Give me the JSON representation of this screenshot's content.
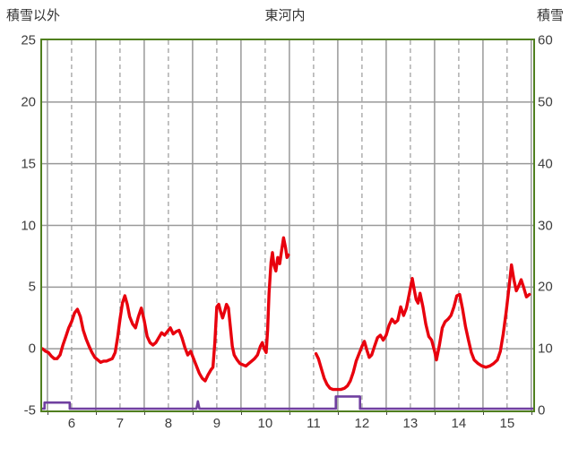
{
  "colors": {
    "background": "#ffffff",
    "frame": "#507f1f",
    "grid": "#999999",
    "text": "#3d3d3d",
    "temperature_line": "#e8000d",
    "snow_line": "#7040a0"
  },
  "chart_data": {
    "type": "line",
    "title": "東河内",
    "legend_position": "none",
    "grid": true,
    "x_axis": {
      "labels": [
        "6",
        "7",
        "8",
        "9",
        "10",
        "11",
        "12",
        "13",
        "14",
        "15"
      ],
      "label_positions": [
        6,
        7,
        8,
        9,
        10,
        11,
        12,
        13,
        14,
        15
      ],
      "range": [
        5.39,
        15.54
      ],
      "solid_gridlines": [
        5.5,
        6.5,
        7.5,
        8.5,
        9.5,
        10.5,
        11.5,
        12.5,
        13.5,
        14.5,
        15.5
      ],
      "dashed_gridlines": [
        6,
        7,
        8,
        9,
        10,
        11,
        12,
        13,
        14,
        15
      ]
    },
    "left_axis": {
      "title": "積雪以外",
      "range": [
        -5,
        25
      ],
      "ticks": [
        25,
        20,
        15,
        10,
        5,
        0,
        -5
      ]
    },
    "right_axis": {
      "title": "積雪",
      "range": [
        0,
        60
      ],
      "ticks": [
        60,
        50,
        40,
        30,
        20,
        10,
        0
      ]
    },
    "series": [
      {
        "name": "積雪以外",
        "axis": "left",
        "color": "#e8000d",
        "width": 3.4,
        "segments": [
          [
            [
              5.4,
              0.0
            ],
            [
              5.46,
              -0.2
            ],
            [
              5.52,
              -0.3
            ],
            [
              5.58,
              -0.6
            ],
            [
              5.64,
              -0.8
            ],
            [
              5.7,
              -0.8
            ],
            [
              5.76,
              -0.5
            ],
            [
              5.82,
              0.3
            ],
            [
              5.88,
              1.0
            ],
            [
              5.94,
              1.7
            ],
            [
              6.0,
              2.2
            ],
            [
              6.06,
              2.9
            ],
            [
              6.12,
              3.2
            ],
            [
              6.18,
              2.6
            ],
            [
              6.24,
              1.5
            ],
            [
              6.3,
              0.8
            ],
            [
              6.36,
              0.2
            ],
            [
              6.42,
              -0.3
            ],
            [
              6.48,
              -0.7
            ],
            [
              6.54,
              -0.9
            ],
            [
              6.6,
              -1.1
            ],
            [
              6.66,
              -1.0
            ],
            [
              6.72,
              -1.0
            ],
            [
              6.78,
              -0.9
            ],
            [
              6.84,
              -0.8
            ],
            [
              6.9,
              -0.3
            ],
            [
              6.95,
              0.9
            ],
            [
              7.0,
              2.4
            ],
            [
              7.05,
              3.7
            ],
            [
              7.1,
              4.3
            ],
            [
              7.15,
              3.6
            ],
            [
              7.2,
              2.6
            ],
            [
              7.26,
              2.0
            ],
            [
              7.32,
              1.7
            ],
            [
              7.38,
              2.6
            ],
            [
              7.44,
              3.3
            ],
            [
              7.5,
              2.3
            ],
            [
              7.56,
              1.0
            ],
            [
              7.62,
              0.5
            ],
            [
              7.68,
              0.3
            ],
            [
              7.74,
              0.5
            ],
            [
              7.8,
              0.9
            ],
            [
              7.86,
              1.3
            ],
            [
              7.92,
              1.1
            ],
            [
              7.98,
              1.4
            ],
            [
              8.04,
              1.7
            ],
            [
              8.1,
              1.2
            ],
            [
              8.16,
              1.4
            ],
            [
              8.22,
              1.5
            ],
            [
              8.28,
              0.9
            ],
            [
              8.34,
              0.1
            ],
            [
              8.4,
              -0.5
            ],
            [
              8.46,
              -0.2
            ],
            [
              8.52,
              -0.8
            ],
            [
              8.58,
              -1.4
            ],
            [
              8.64,
              -2.0
            ],
            [
              8.7,
              -2.4
            ],
            [
              8.76,
              -2.6
            ],
            [
              8.82,
              -2.1
            ],
            [
              8.88,
              -1.7
            ],
            [
              8.92,
              -1.5
            ],
            [
              8.96,
              0.5
            ],
            [
              9.0,
              3.4
            ],
            [
              9.04,
              3.6
            ],
            [
              9.08,
              3.0
            ],
            [
              9.12,
              2.5
            ],
            [
              9.16,
              3.0
            ],
            [
              9.2,
              3.6
            ],
            [
              9.24,
              3.3
            ],
            [
              9.28,
              1.8
            ],
            [
              9.32,
              0.2
            ],
            [
              9.36,
              -0.5
            ],
            [
              9.42,
              -0.9
            ],
            [
              9.48,
              -1.2
            ],
            [
              9.54,
              -1.3
            ],
            [
              9.6,
              -1.4
            ],
            [
              9.66,
              -1.2
            ],
            [
              9.72,
              -1.0
            ],
            [
              9.78,
              -0.8
            ],
            [
              9.84,
              -0.5
            ],
            [
              9.9,
              0.2
            ],
            [
              9.94,
              0.5
            ],
            [
              9.98,
              0.0
            ],
            [
              10.02,
              -0.3
            ],
            [
              10.05,
              1.5
            ],
            [
              10.08,
              4.5
            ],
            [
              10.12,
              7.0
            ],
            [
              10.15,
              7.8
            ],
            [
              10.18,
              6.8
            ],
            [
              10.22,
              6.3
            ],
            [
              10.26,
              7.4
            ],
            [
              10.3,
              6.9
            ],
            [
              10.34,
              8.0
            ],
            [
              10.38,
              9.0
            ],
            [
              10.42,
              8.2
            ],
            [
              10.45,
              7.4
            ],
            [
              10.48,
              7.6
            ]
          ],
          [
            [
              11.05,
              -0.4
            ],
            [
              11.1,
              -0.8
            ],
            [
              11.16,
              -1.6
            ],
            [
              11.22,
              -2.4
            ],
            [
              11.28,
              -2.9
            ],
            [
              11.34,
              -3.2
            ],
            [
              11.4,
              -3.3
            ],
            [
              11.48,
              -3.3
            ],
            [
              11.56,
              -3.3
            ],
            [
              11.64,
              -3.2
            ],
            [
              11.7,
              -3.0
            ],
            [
              11.76,
              -2.6
            ],
            [
              11.82,
              -1.9
            ],
            [
              11.88,
              -1.0
            ],
            [
              11.94,
              -0.4
            ],
            [
              12.0,
              0.2
            ],
            [
              12.05,
              0.6
            ],
            [
              12.1,
              -0.1
            ],
            [
              12.15,
              -0.7
            ],
            [
              12.2,
              -0.5
            ],
            [
              12.26,
              0.2
            ],
            [
              12.32,
              0.9
            ],
            [
              12.38,
              1.1
            ],
            [
              12.44,
              0.7
            ],
            [
              12.5,
              1.1
            ],
            [
              12.56,
              1.9
            ],
            [
              12.62,
              2.4
            ],
            [
              12.68,
              2.1
            ],
            [
              12.74,
              2.3
            ],
            [
              12.8,
              3.4
            ],
            [
              12.86,
              2.7
            ],
            [
              12.92,
              3.3
            ],
            [
              12.98,
              4.5
            ],
            [
              13.04,
              5.7
            ],
            [
              13.08,
              4.8
            ],
            [
              13.12,
              4.0
            ],
            [
              13.16,
              3.7
            ],
            [
              13.2,
              4.5
            ],
            [
              13.26,
              3.4
            ],
            [
              13.32,
              2.0
            ],
            [
              13.38,
              1.0
            ],
            [
              13.44,
              0.7
            ],
            [
              13.5,
              -0.2
            ],
            [
              13.54,
              -0.9
            ],
            [
              13.6,
              0.3
            ],
            [
              13.66,
              1.7
            ],
            [
              13.72,
              2.2
            ],
            [
              13.78,
              2.4
            ],
            [
              13.84,
              2.7
            ],
            [
              13.9,
              3.4
            ],
            [
              13.96,
              4.3
            ],
            [
              14.02,
              4.4
            ],
            [
              14.08,
              3.2
            ],
            [
              14.14,
              1.8
            ],
            [
              14.2,
              0.7
            ],
            [
              14.26,
              -0.3
            ],
            [
              14.32,
              -0.9
            ],
            [
              14.4,
              -1.2
            ],
            [
              14.48,
              -1.4
            ],
            [
              14.56,
              -1.5
            ],
            [
              14.64,
              -1.4
            ],
            [
              14.72,
              -1.2
            ],
            [
              14.8,
              -0.9
            ],
            [
              14.86,
              -0.2
            ],
            [
              14.92,
              1.2
            ],
            [
              14.98,
              3.0
            ],
            [
              15.04,
              5.0
            ],
            [
              15.09,
              6.8
            ],
            [
              15.14,
              5.6
            ],
            [
              15.19,
              4.7
            ],
            [
              15.24,
              5.1
            ],
            [
              15.29,
              5.6
            ],
            [
              15.34,
              5.0
            ],
            [
              15.4,
              4.2
            ],
            [
              15.46,
              4.4
            ]
          ]
        ]
      },
      {
        "name": "積雪",
        "axis": "right",
        "color": "#7040a0",
        "width": 2.6,
        "segments": [
          [
            [
              5.39,
              0
            ],
            [
              5.44,
              0
            ],
            [
              5.44,
              1
            ],
            [
              5.96,
              1
            ],
            [
              5.96,
              0
            ],
            [
              8.58,
              0
            ],
            [
              8.61,
              1.2
            ],
            [
              8.64,
              0
            ],
            [
              11.46,
              0
            ],
            [
              11.46,
              2
            ],
            [
              11.96,
              2
            ],
            [
              11.96,
              0
            ],
            [
              15.54,
              0
            ]
          ]
        ]
      }
    ]
  }
}
